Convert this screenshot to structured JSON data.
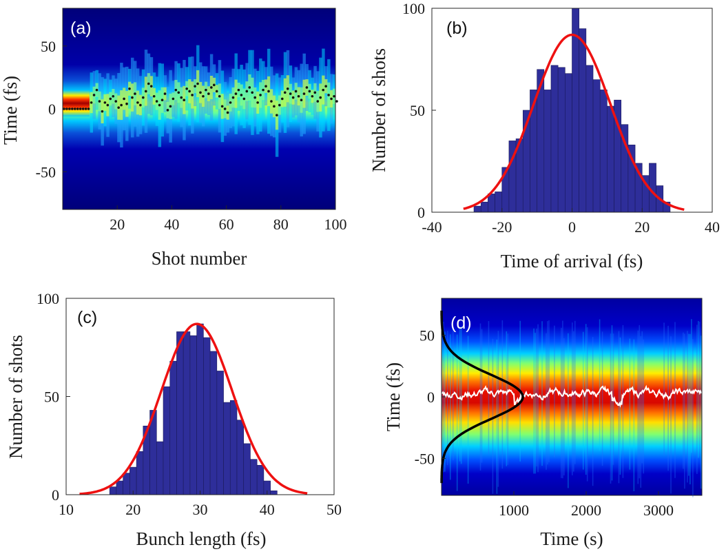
{
  "chart_data": [
    {
      "panel": "(a)",
      "type": "heatmap",
      "title": "",
      "xlabel": "Shot number",
      "ylabel": "Time (fs)",
      "xlim": [
        0,
        100
      ],
      "ylim": [
        -80,
        80
      ],
      "xticks": [
        20,
        40,
        60,
        80,
        100
      ],
      "yticks": [
        50,
        0,
        -50
      ],
      "colormap": "jet",
      "overlay": "black dots marking per-shot arrival time",
      "arrival_times": [
        0,
        0,
        0,
        0,
        0,
        0,
        0,
        0,
        0,
        0,
        5,
        11,
        15,
        6,
        -2,
        5,
        3,
        8,
        10,
        6,
        1,
        3,
        8,
        4,
        16,
        9,
        12,
        5,
        3,
        9,
        14,
        20,
        18,
        10,
        6,
        3,
        7,
        12,
        -1,
        2,
        8,
        15,
        13,
        9,
        7,
        16,
        14,
        11,
        18,
        20,
        13,
        10,
        15,
        12,
        17,
        19,
        14,
        10,
        2,
        0,
        -3,
        5,
        9,
        12,
        15,
        11,
        8,
        14,
        17,
        13,
        9,
        5,
        11,
        15,
        18,
        14,
        6,
        2,
        -5,
        3,
        8,
        13,
        16,
        12,
        9,
        14,
        10,
        7,
        12,
        17,
        14,
        10,
        13,
        6,
        9,
        15,
        18,
        11,
        8,
        10,
        6
      ]
    },
    {
      "panel": "(b)",
      "type": "bar",
      "title": "",
      "xlabel": "Time of arrival (fs)",
      "ylabel": "Number of shots",
      "xlim": [
        -40,
        40
      ],
      "ylim": [
        0,
        100
      ],
      "xticks": [
        -40,
        -20,
        0,
        20,
        40
      ],
      "yticks": [
        0,
        50,
        100
      ],
      "bin_width": 2,
      "bin_centers": [
        -27,
        -25,
        -23,
        -21,
        -19,
        -17,
        -15,
        -13,
        -11,
        -9,
        -7,
        -5,
        -3,
        -1,
        1,
        3,
        5,
        7,
        9,
        11,
        13,
        15,
        17,
        19,
        21,
        23,
        25,
        27
      ],
      "values": [
        3,
        5,
        9,
        10,
        22,
        35,
        36,
        50,
        60,
        70,
        60,
        72,
        71,
        68,
        101,
        90,
        72,
        65,
        60,
        52,
        55,
        43,
        33,
        24,
        18,
        24,
        13,
        5
      ],
      "fit": {
        "type": "gaussian",
        "amplitude": 87,
        "mean": 0,
        "sigma": 11,
        "range": [
          -31,
          32
        ]
      }
    },
    {
      "panel": "(c)",
      "type": "bar",
      "title": "",
      "xlabel": "Bunch length (fs)",
      "ylabel": "Number of shots",
      "xlim": [
        10,
        50
      ],
      "ylim": [
        0,
        100
      ],
      "xticks": [
        10,
        20,
        30,
        40,
        50
      ],
      "yticks": [
        0,
        50,
        100
      ],
      "bin_width": 1,
      "bin_centers": [
        17,
        18,
        19,
        20,
        21,
        22,
        23,
        24,
        25,
        26,
        27,
        28,
        29,
        30,
        31,
        32,
        33,
        34,
        35,
        36,
        37,
        38,
        39,
        40,
        41
      ],
      "values": [
        4,
        7,
        11,
        14,
        22,
        35,
        43,
        27,
        55,
        68,
        83,
        83,
        81,
        87,
        80,
        73,
        63,
        47,
        48,
        38,
        26,
        18,
        15,
        7,
        2
      ],
      "fit": {
        "type": "gaussian",
        "amplitude": 87,
        "mean": 29.5,
        "sigma": 5.3,
        "range": [
          12,
          46
        ]
      }
    },
    {
      "panel": "(d)",
      "type": "heatmap",
      "title": "",
      "xlabel": "Time (s)",
      "ylabel": "Time (fs)",
      "xlim": [
        0,
        3600
      ],
      "ylim": [
        -80,
        80
      ],
      "xticks": [
        1000,
        2000,
        3000
      ],
      "yticks": [
        50,
        0,
        -50
      ],
      "colormap": "jet",
      "overlay": "white trace of arrival time; black gaussian profile along left edge",
      "profile": {
        "type": "gaussian",
        "mean": 0,
        "sigma": 18,
        "range": [
          -70,
          70
        ]
      }
    }
  ],
  "colors": {
    "bars": "#2e2e9a",
    "fit": "#ee1111",
    "dots": "#111111",
    "trace": "#ffffff"
  }
}
